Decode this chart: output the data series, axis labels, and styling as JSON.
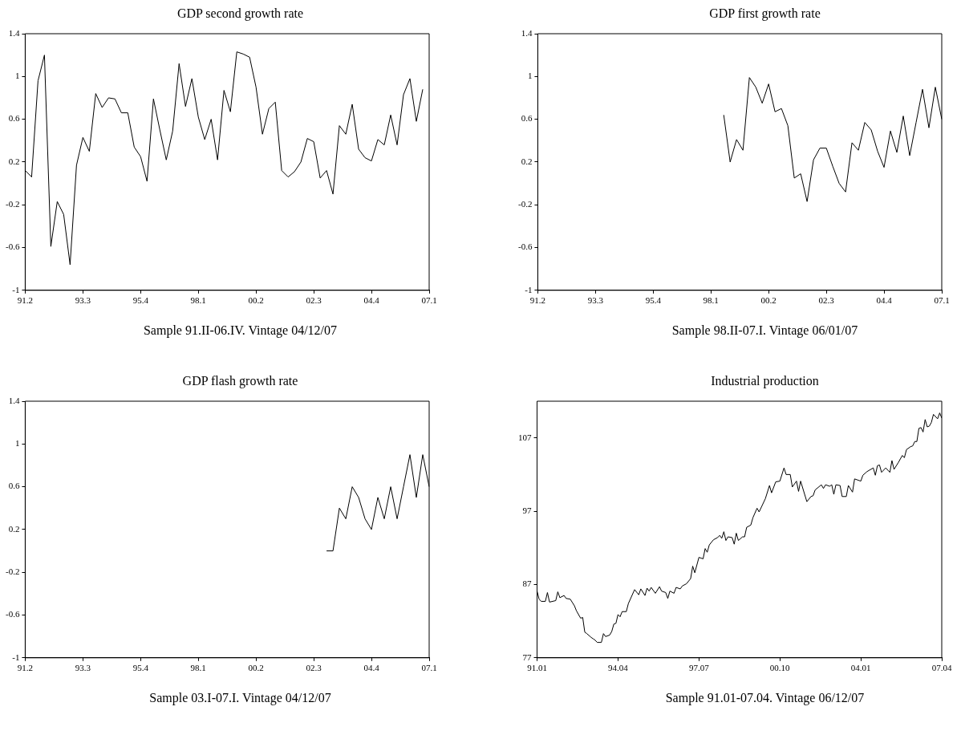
{
  "chart_data": [
    {
      "type": "line",
      "title": "GDP second growth rate",
      "annotations": [
        "Sample 91.II-06.IV. Vintage 04/12/07"
      ],
      "color": "#000000",
      "categories": [
        "91.2",
        null,
        null,
        null,
        null,
        null,
        null,
        null,
        null,
        "93.3",
        null,
        null,
        null,
        null,
        null,
        null,
        null,
        null,
        "95.4",
        null,
        null,
        null,
        null,
        null,
        null,
        null,
        null,
        "98.1",
        null,
        null,
        null,
        null,
        null,
        null,
        null,
        null,
        "00.2",
        null,
        null,
        null,
        null,
        null,
        null,
        null,
        null,
        "02.3",
        null,
        null,
        null,
        null,
        null,
        null,
        null,
        null,
        "04.4",
        null,
        null,
        null,
        null,
        null,
        null,
        null,
        null,
        "07.1"
      ],
      "values": [
        0.12,
        0.06,
        0.96,
        1.2,
        -0.59,
        -0.17,
        -0.29,
        -0.76,
        0.17,
        0.43,
        0.3,
        0.84,
        0.71,
        0.8,
        0.79,
        0.66,
        0.66,
        0.34,
        0.25,
        0.02,
        0.79,
        0.5,
        0.22,
        0.49,
        1.12,
        0.72,
        0.98,
        0.62,
        0.41,
        0.6,
        0.22,
        0.87,
        0.67,
        1.23,
        1.21,
        1.18,
        0.9,
        0.46,
        0.7,
        0.76,
        0.12,
        0.06,
        0.11,
        0.2,
        0.42,
        0.39,
        0.05,
        0.12,
        -0.1,
        0.54,
        0.46,
        0.74,
        0.32,
        0.24,
        0.21,
        0.41,
        0.36,
        0.64,
        0.36,
        0.83,
        0.98,
        0.58,
        0.88,
        null
      ],
      "ylim": [
        -1,
        1.4
      ],
      "yticks": [
        -1,
        -0.6,
        -0.2,
        0.2,
        0.6,
        1,
        1.4
      ]
    },
    {
      "type": "line",
      "title": "GDP first growth rate",
      "annotations": [
        "Sample 98.II-07.I. Vintage 06/01/07"
      ],
      "color": "#000000",
      "categories": [
        "91.2",
        null,
        null,
        null,
        null,
        null,
        null,
        null,
        null,
        "93.3",
        null,
        null,
        null,
        null,
        null,
        null,
        null,
        null,
        "95.4",
        null,
        null,
        null,
        null,
        null,
        null,
        null,
        null,
        "98.1",
        null,
        null,
        null,
        null,
        null,
        null,
        null,
        null,
        "00.2",
        null,
        null,
        null,
        null,
        null,
        null,
        null,
        null,
        "02.3",
        null,
        null,
        null,
        null,
        null,
        null,
        null,
        null,
        "04.4",
        null,
        null,
        null,
        null,
        null,
        null,
        null,
        null,
        "07.1"
      ],
      "values": [
        null,
        null,
        null,
        null,
        null,
        null,
        null,
        null,
        null,
        null,
        null,
        null,
        null,
        null,
        null,
        null,
        null,
        null,
        null,
        null,
        null,
        null,
        null,
        null,
        null,
        null,
        null,
        null,
        null,
        0.64,
        0.2,
        0.41,
        0.31,
        0.99,
        0.9,
        0.75,
        0.93,
        0.67,
        0.7,
        0.54,
        0.05,
        0.09,
        -0.17,
        0.22,
        0.33,
        0.33,
        0.16,
        0.0,
        -0.08,
        0.38,
        0.31,
        0.57,
        0.5,
        0.3,
        0.15,
        0.49,
        0.29,
        0.63,
        0.26,
        0.57,
        0.88,
        0.52,
        0.9,
        0.6
      ],
      "ylim": [
        -1,
        1.4
      ],
      "yticks": [
        -1,
        -0.6,
        -0.2,
        0.2,
        0.6,
        1,
        1.4
      ]
    },
    {
      "type": "line",
      "title": "GDP flash growth rate",
      "annotations": [
        "Sample 03.I-07.I. Vintage 04/12/07"
      ],
      "color": "#000000",
      "categories": [
        "91.2",
        null,
        null,
        null,
        null,
        null,
        null,
        null,
        null,
        "93.3",
        null,
        null,
        null,
        null,
        null,
        null,
        null,
        null,
        "95.4",
        null,
        null,
        null,
        null,
        null,
        null,
        null,
        null,
        "98.1",
        null,
        null,
        null,
        null,
        null,
        null,
        null,
        null,
        "00.2",
        null,
        null,
        null,
        null,
        null,
        null,
        null,
        null,
        "02.3",
        null,
        null,
        null,
        null,
        null,
        null,
        null,
        null,
        "04.4",
        null,
        null,
        null,
        null,
        null,
        null,
        null,
        null,
        "07.1"
      ],
      "values": [
        null,
        null,
        null,
        null,
        null,
        null,
        null,
        null,
        null,
        null,
        null,
        null,
        null,
        null,
        null,
        null,
        null,
        null,
        null,
        null,
        null,
        null,
        null,
        null,
        null,
        null,
        null,
        null,
        null,
        null,
        null,
        null,
        null,
        null,
        null,
        null,
        null,
        null,
        null,
        null,
        null,
        null,
        null,
        null,
        null,
        null,
        null,
        0.0,
        0.0,
        0.4,
        0.3,
        0.6,
        0.5,
        0.3,
        0.2,
        0.5,
        0.3,
        0.6,
        0.3,
        0.6,
        0.9,
        0.5,
        0.9,
        0.6
      ],
      "ylim": [
        -1,
        1.4
      ],
      "yticks": [
        -1,
        -0.6,
        -0.2,
        0.2,
        0.6,
        1,
        1.4
      ]
    },
    {
      "type": "line",
      "title": "Industrial production",
      "annotations": [
        "Sample 91.01-07.04. Vintage 06/12/07"
      ],
      "color": "#000000",
      "x": [
        "1991-01",
        "1991-02",
        "1991-03",
        "1991-05",
        "1991-06",
        "1991-07",
        "1991-10",
        "1991-11",
        "1991-12",
        "1992-02",
        "1992-03",
        "1992-05",
        "1992-07",
        "1992-08",
        "1992-10",
        "1992-11",
        "1992-12",
        "1993-01",
        "1993-03",
        "1993-04",
        "1993-05",
        "1993-06",
        "1993-08",
        "1993-09",
        "1993-10",
        "1993-12",
        "1994-01",
        "1994-02",
        "1994-03",
        "1994-04",
        "1994-05",
        "1994-06",
        "1994-08",
        "1994-09",
        "1994-12",
        "1995-02",
        "1995-03",
        "1995-05",
        "1995-06",
        "1995-07",
        "1995-08",
        "1995-10",
        "1995-12",
        "1996-01",
        "1996-03",
        "1996-04",
        "1996-05",
        "1996-07",
        "1996-08",
        "1996-10",
        "1996-11",
        "1997-01",
        "1997-03",
        "1997-04",
        "1997-05",
        "1997-07",
        "1997-09",
        "1997-10",
        "1997-11",
        "1997-12",
        "1998-02",
        "1998-04",
        "1998-05",
        "1998-06",
        "1998-07",
        "1998-08",
        "1998-09",
        "1998-11",
        "1998-12",
        "1999-01",
        "1999-02",
        "1999-04",
        "1999-05",
        "1999-06",
        "1999-08",
        "1999-09",
        "1999-11",
        "1999-12",
        "2000-02",
        "2000-03",
        "2000-05",
        "2000-06",
        "2000-08",
        "2000-10",
        "2000-12",
        "2001-01",
        "2001-03",
        "2001-04",
        "2001-06",
        "2001-07",
        "2001-08",
        "2001-11",
        "2002-01",
        "2002-02",
        "2002-03",
        "2002-06",
        "2002-07",
        "2002-08",
        "2002-10",
        "2002-11",
        "2002-12",
        "2003-01",
        "2003-03",
        "2003-04",
        "2003-06",
        "2003-07",
        "2003-09",
        "2003-10",
        "2004-01",
        "2004-02",
        "2004-04",
        "2004-07",
        "2004-08",
        "2004-09",
        "2004-10",
        "2004-11",
        "2005-01",
        "2005-03",
        "2005-04",
        "2005-05",
        "2005-07",
        "2005-09",
        "2005-10",
        "2005-11",
        "2006-01",
        "2006-02",
        "2006-03",
        "2006-04",
        "2006-05",
        "2006-06",
        "2006-07",
        "2006-08",
        "2006-09",
        "2006-10",
        "2006-11",
        "2006-12",
        "2007-02",
        "2007-03",
        "2007-04"
      ],
      "values": [
        86.1,
        85.0,
        84.7,
        84.7,
        85.9,
        84.6,
        84.8,
        86.0,
        85.2,
        85.5,
        85.1,
        85.0,
        84.1,
        83.4,
        82.4,
        82.5,
        80.5,
        80.3,
        79.8,
        79.6,
        79.4,
        79.1,
        79.1,
        80.3,
        79.9,
        80.1,
        80.6,
        81.6,
        81.7,
        82.9,
        82.6,
        83.3,
        83.3,
        84.4,
        86.3,
        85.6,
        86.4,
        85.5,
        86.5,
        86.1,
        86.6,
        85.8,
        86.7,
        86.1,
        85.9,
        85.1,
        86.1,
        85.8,
        86.6,
        86.4,
        86.8,
        87.1,
        87.8,
        89.5,
        88.6,
        90.7,
        90.5,
        91.9,
        91.4,
        92.4,
        93.1,
        93.4,
        93.7,
        93.3,
        94.2,
        93.0,
        93.5,
        93.4,
        92.5,
        94.0,
        93.0,
        93.5,
        93.5,
        94.8,
        95.1,
        96.1,
        97.4,
        96.9,
        98.1,
        98.7,
        100.5,
        99.5,
        101.0,
        101.1,
        102.9,
        102.0,
        102.0,
        100.3,
        101.1,
        99.7,
        101.1,
        98.3,
        99.0,
        99.1,
        99.9,
        100.6,
        100.1,
        100.6,
        100.4,
        100.6,
        99.3,
        100.6,
        100.5,
        99.0,
        99.0,
        100.5,
        99.6,
        101.4,
        101.1,
        101.9,
        102.4,
        102.9,
        101.9,
        103.2,
        103.3,
        102.3,
        102.9,
        102.3,
        103.9,
        102.7,
        103.6,
        104.6,
        104.3,
        105.4,
        105.8,
        105.9,
        106.5,
        106.5,
        108.3,
        108.4,
        107.8,
        109.5,
        108.5,
        108.6,
        109.1,
        110.2,
        109.6,
        110.4,
        109.7
      ],
      "xlim": [
        "1991-01",
        "2007-04"
      ],
      "xticks": [
        {
          "value": "1991-01",
          "label": "91.01"
        },
        {
          "value": "1994-04",
          "label": "94.04"
        },
        {
          "value": "1997-07",
          "label": "97.07"
        },
        {
          "value": "2000-10",
          "label": "00.10"
        },
        {
          "value": "2004-01",
          "label": "04.01"
        },
        {
          "value": "2007-04",
          "label": "07.04"
        }
      ],
      "ylim": [
        77,
        112
      ],
      "yticks": [
        77,
        87,
        97,
        107
      ]
    }
  ]
}
